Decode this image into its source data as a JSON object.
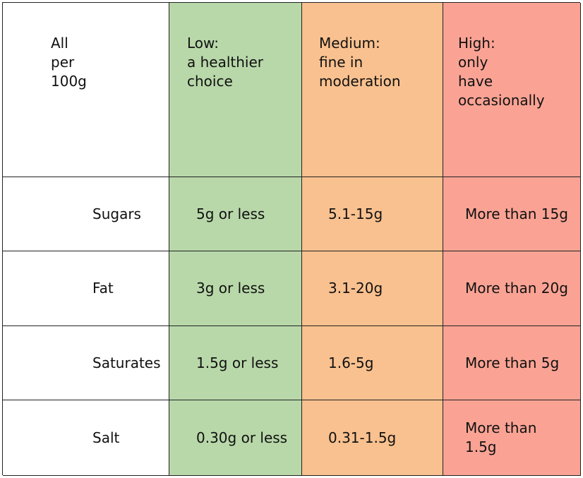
{
  "header": {
    "label": "All\nper\n100g",
    "low": "Low:\na healthier\nchoice",
    "medium": "Medium:\nfine in\nmoderation",
    "high": "High:\nonly\nhave\noccasionally"
  },
  "rows": [
    {
      "nutrient": "Sugars",
      "low": "5g or less",
      "medium": "5.1-15g",
      "high": "More than 15g"
    },
    {
      "nutrient": "Fat",
      "low": "3g or less",
      "medium": "3.1-20g",
      "high": "More than 20g"
    },
    {
      "nutrient": "Saturates",
      "low": "1.5g or less",
      "medium": "1.6-5g",
      "high": "More than 5g"
    },
    {
      "nutrient": "Salt",
      "low": "0.30g or less",
      "medium": "0.31-1.5g",
      "high": "More than\n1.5g"
    }
  ],
  "colors": {
    "low": "#b8d8a9",
    "medium": "#f9c18f",
    "high": "#faa394"
  }
}
